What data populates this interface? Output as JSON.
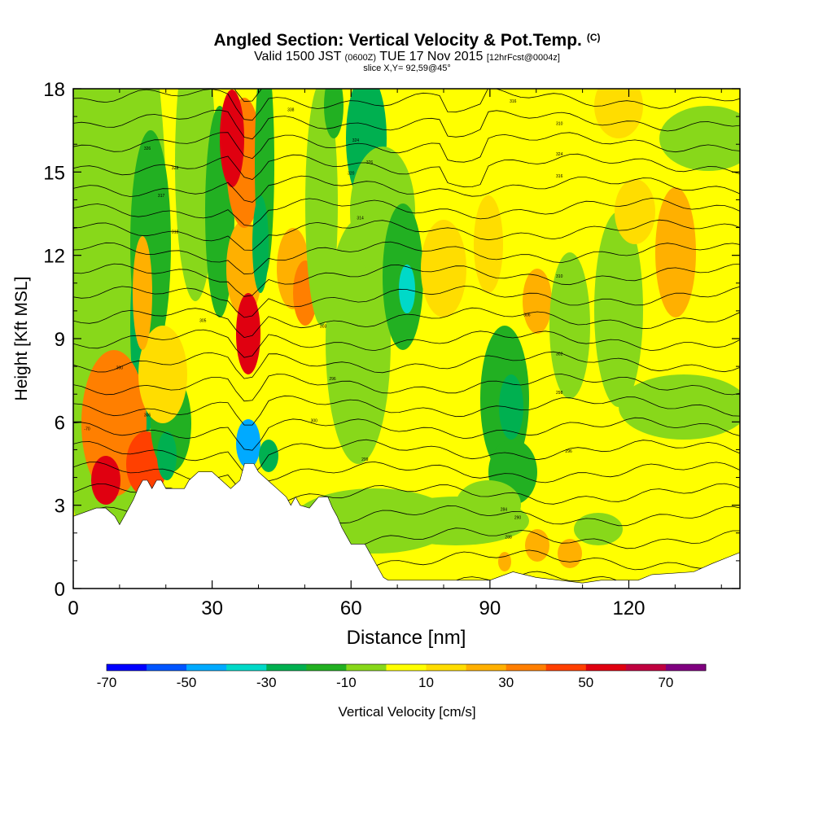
{
  "header": {
    "title": "Angled Section: Vertical Velocity & Pot.Temp.",
    "title_unit": "(C)",
    "valid_prefix": "Valid 1500 JST",
    "valid_zulu": "(0600Z)",
    "valid_date": "TUE 17 Nov 2015",
    "forecast": "[12hrFcst@0004z]",
    "slice": "slice X,Y= 92,59@45°"
  },
  "chart_data": {
    "type": "heatmap",
    "xlabel": "Distance [nm]",
    "ylabel": "Height [Kft MSL]",
    "xlim": [
      0,
      144
    ],
    "ylim": [
      0,
      18
    ],
    "x_ticks": [
      0,
      30,
      60,
      90,
      120
    ],
    "y_ticks": [
      0,
      3,
      6,
      9,
      12,
      15,
      18
    ],
    "grid": false,
    "colorbar": {
      "label": "Vertical Velocity [cm/s]",
      "tick_labels": [
        "-70",
        "-50",
        "-30",
        "-10",
        "10",
        "30",
        "50",
        "70"
      ],
      "tick_values": [
        -70,
        -50,
        -30,
        -10,
        10,
        30,
        50,
        70
      ],
      "bounds": [
        -70,
        -60,
        -50,
        -40,
        -30,
        -20,
        -10,
        0,
        10,
        20,
        30,
        40,
        50,
        60,
        70,
        80
      ],
      "colors": [
        "#0000ff",
        "#0055ff",
        "#00aaff",
        "#00d9c8",
        "#00b050",
        "#22b022",
        "#88d81a",
        "#ffff00",
        "#ffdd00",
        "#ffb000",
        "#ff7f00",
        "#ff4000",
        "#e00010",
        "#c00040",
        "#800080"
      ]
    },
    "terrain_kft": [
      [
        0,
        2.6
      ],
      [
        5,
        2.9
      ],
      [
        7,
        2.9
      ],
      [
        9,
        2.6
      ],
      [
        10,
        2.3
      ],
      [
        11,
        2.6
      ],
      [
        12,
        2.9
      ],
      [
        13,
        3.2
      ],
      [
        14,
        3.6
      ],
      [
        15,
        3.9
      ],
      [
        16,
        3.9
      ],
      [
        17,
        3.6
      ],
      [
        18,
        3.9
      ],
      [
        19,
        3.9
      ],
      [
        20,
        3.6
      ],
      [
        24,
        3.6
      ],
      [
        25,
        3.9
      ],
      [
        27,
        4.2
      ],
      [
        30,
        4.2
      ],
      [
        34,
        3.6
      ],
      [
        36,
        3.9
      ],
      [
        37,
        4.5
      ],
      [
        39,
        4.5
      ],
      [
        40,
        4.2
      ],
      [
        42,
        3.9
      ],
      [
        44,
        3.6
      ],
      [
        46,
        3.3
      ],
      [
        47,
        3.0
      ],
      [
        48,
        3.3
      ],
      [
        49,
        3.0
      ],
      [
        51,
        2.9
      ],
      [
        53,
        3.3
      ],
      [
        55,
        3.3
      ],
      [
        56,
        2.9
      ],
      [
        57,
        2.6
      ],
      [
        58,
        2.2
      ],
      [
        59,
        1.9
      ],
      [
        60,
        1.6
      ],
      [
        63,
        1.6
      ],
      [
        64,
        1.3
      ],
      [
        65,
        1.0
      ],
      [
        66,
        0.7
      ],
      [
        67,
        0.4
      ],
      [
        68,
        0.3
      ],
      [
        90,
        0.3
      ],
      [
        95,
        0.6
      ],
      [
        100,
        0.4
      ],
      [
        110,
        0.2
      ],
      [
        114,
        0.3
      ],
      [
        122,
        0.3
      ],
      [
        125,
        0.5
      ],
      [
        134,
        0.6
      ],
      [
        138,
        0.9
      ],
      [
        144,
        1.3
      ]
    ],
    "annotations": [
      {
        "text": "-70",
        "x": 3,
        "y": 5.7
      },
      {
        "text": "300",
        "x": 10,
        "y": 7.9
      },
      {
        "text": "306",
        "x": 16,
        "y": 6.2
      },
      {
        "text": "317",
        "x": 19,
        "y": 14.1
      },
      {
        "text": "326",
        "x": 16,
        "y": 15.8
      },
      {
        "text": "328",
        "x": 22,
        "y": 15.1
      },
      {
        "text": "318",
        "x": 22,
        "y": 12.8
      },
      {
        "text": "305",
        "x": 28,
        "y": 9.6
      },
      {
        "text": "303",
        "x": 54,
        "y": 9.4
      },
      {
        "text": "296",
        "x": 56,
        "y": 7.5
      },
      {
        "text": "300",
        "x": 52,
        "y": 6.0
      },
      {
        "text": "299",
        "x": 63,
        "y": 4.6
      },
      {
        "text": "338",
        "x": 47,
        "y": 17.2
      },
      {
        "text": "324",
        "x": 61,
        "y": 16.1
      },
      {
        "text": "326",
        "x": 64,
        "y": 15.3
      },
      {
        "text": "320",
        "x": 60,
        "y": 14.9
      },
      {
        "text": "314",
        "x": 62,
        "y": 13.3
      },
      {
        "text": "310",
        "x": 105,
        "y": 16.7
      },
      {
        "text": "324",
        "x": 105,
        "y": 15.6
      },
      {
        "text": "316",
        "x": 105,
        "y": 14.8
      },
      {
        "text": "310",
        "x": 105,
        "y": 11.2
      },
      {
        "text": "306",
        "x": 98,
        "y": 9.8
      },
      {
        "text": "302",
        "x": 105,
        "y": 8.4
      },
      {
        "text": "298",
        "x": 105,
        "y": 7.0
      },
      {
        "text": "296",
        "x": 107,
        "y": 4.9
      },
      {
        "text": "284",
        "x": 93,
        "y": 2.8
      },
      {
        "text": "290",
        "x": 96,
        "y": 2.5
      },
      {
        "text": "288",
        "x": 94,
        "y": 1.8
      },
      {
        "text": "316",
        "x": 95,
        "y": 17.5
      }
    ]
  }
}
